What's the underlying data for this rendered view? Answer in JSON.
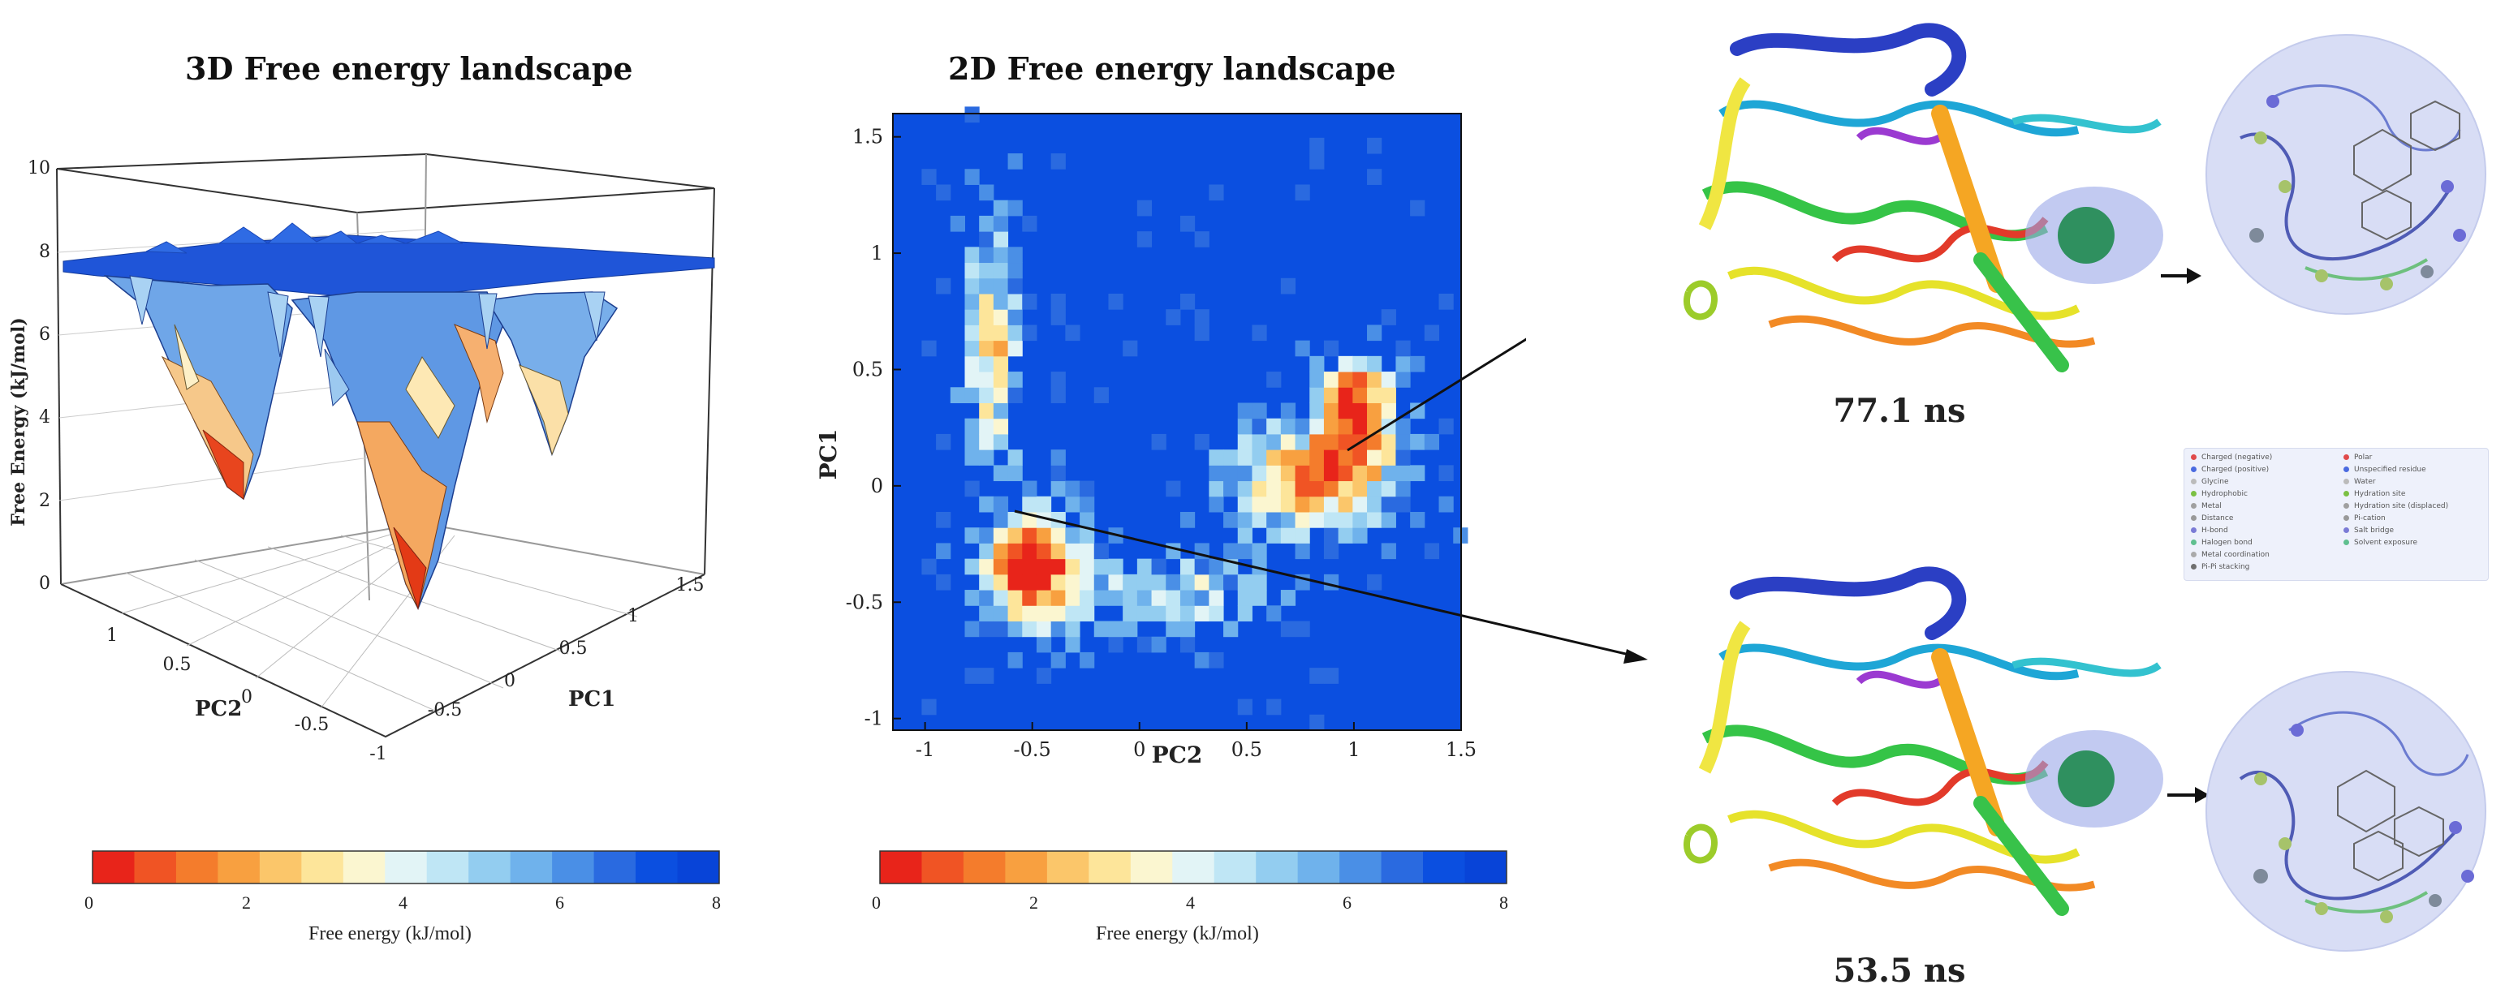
{
  "chart_data": [
    {
      "type": "surface",
      "title": "3D Free energy landscape",
      "xlabel": "PC2",
      "ylabel": "PC1",
      "zlabel": "Free Energy (kJ/mol)",
      "x_ticks": [
        "1",
        "0.5",
        "0",
        "-0.5",
        "-1"
      ],
      "y_ticks": [
        "-0.5",
        "0",
        "0.5",
        "1",
        "1.5"
      ],
      "z_ticks": [
        "0",
        "2",
        "4",
        "6",
        "8",
        "10"
      ],
      "zlim": [
        0,
        10
      ],
      "plateau_value": 8,
      "minima": [
        {
          "pc2": -0.5,
          "pc1": -0.3,
          "free_energy": 0.2
        },
        {
          "pc2": 1.0,
          "pc1": 0.3,
          "free_energy": 1.5
        },
        {
          "pc2": 0.0,
          "pc1": 0.9,
          "free_energy": 4.5
        }
      ],
      "colorbar": {
        "label": "Free energy (kJ/mol)",
        "ticks": [
          "0",
          "2",
          "4",
          "6",
          "8"
        ],
        "range": [
          0,
          8
        ]
      }
    },
    {
      "type": "heatmap",
      "title": "2D Free energy landscape",
      "xlabel": "PC2",
      "ylabel": "PC1",
      "x_ticks": [
        "-1",
        "-0.5",
        "0",
        "0.5",
        "1",
        "1.5"
      ],
      "y_ticks": [
        "-1",
        "-0.5",
        "0",
        "0.5",
        "1",
        "1.5"
      ],
      "xlim": [
        -1.15,
        1.5
      ],
      "ylim": [
        -1.05,
        1.6
      ],
      "background_value": 8,
      "minima": [
        {
          "pc2": -0.5,
          "pc1": -0.35,
          "free_energy": 0
        },
        {
          "pc2": 1.0,
          "pc1": 0.3,
          "free_energy": 0.5
        }
      ],
      "colorbar": {
        "label": "Free energy (kJ/mol)",
        "ticks": [
          "0",
          "2",
          "4",
          "6",
          "8"
        ],
        "range": [
          0,
          8
        ]
      }
    }
  ],
  "colormap": [
    "#e8241a",
    "#f05424",
    "#f47c2c",
    "#f8a040",
    "#fbc66a",
    "#fde59a",
    "#fbf6d0",
    "#e2f4f6",
    "#bfe6f5",
    "#93cdf0",
    "#6fb2ec",
    "#4a8fe6",
    "#2a6ae0",
    "#0b4fe0",
    "#0844d8"
  ],
  "structures": [
    {
      "label": "77.1 ns"
    },
    {
      "label": "53.5 ns"
    }
  ],
  "legend": {
    "col1": [
      "Charged (negative)",
      "Charged (positive)",
      "Glycine",
      "Hydrophobic",
      "Metal",
      "Distance",
      "H-bond",
      "Halogen bond",
      "Metal coordination",
      "Pi-Pi stacking"
    ],
    "col2": [
      "Polar",
      "Unspecified residue",
      "Water",
      "Hydration site",
      "Hydration site (displaced)",
      "Pi-cation",
      "Salt bridge",
      "Solvent exposure"
    ]
  }
}
